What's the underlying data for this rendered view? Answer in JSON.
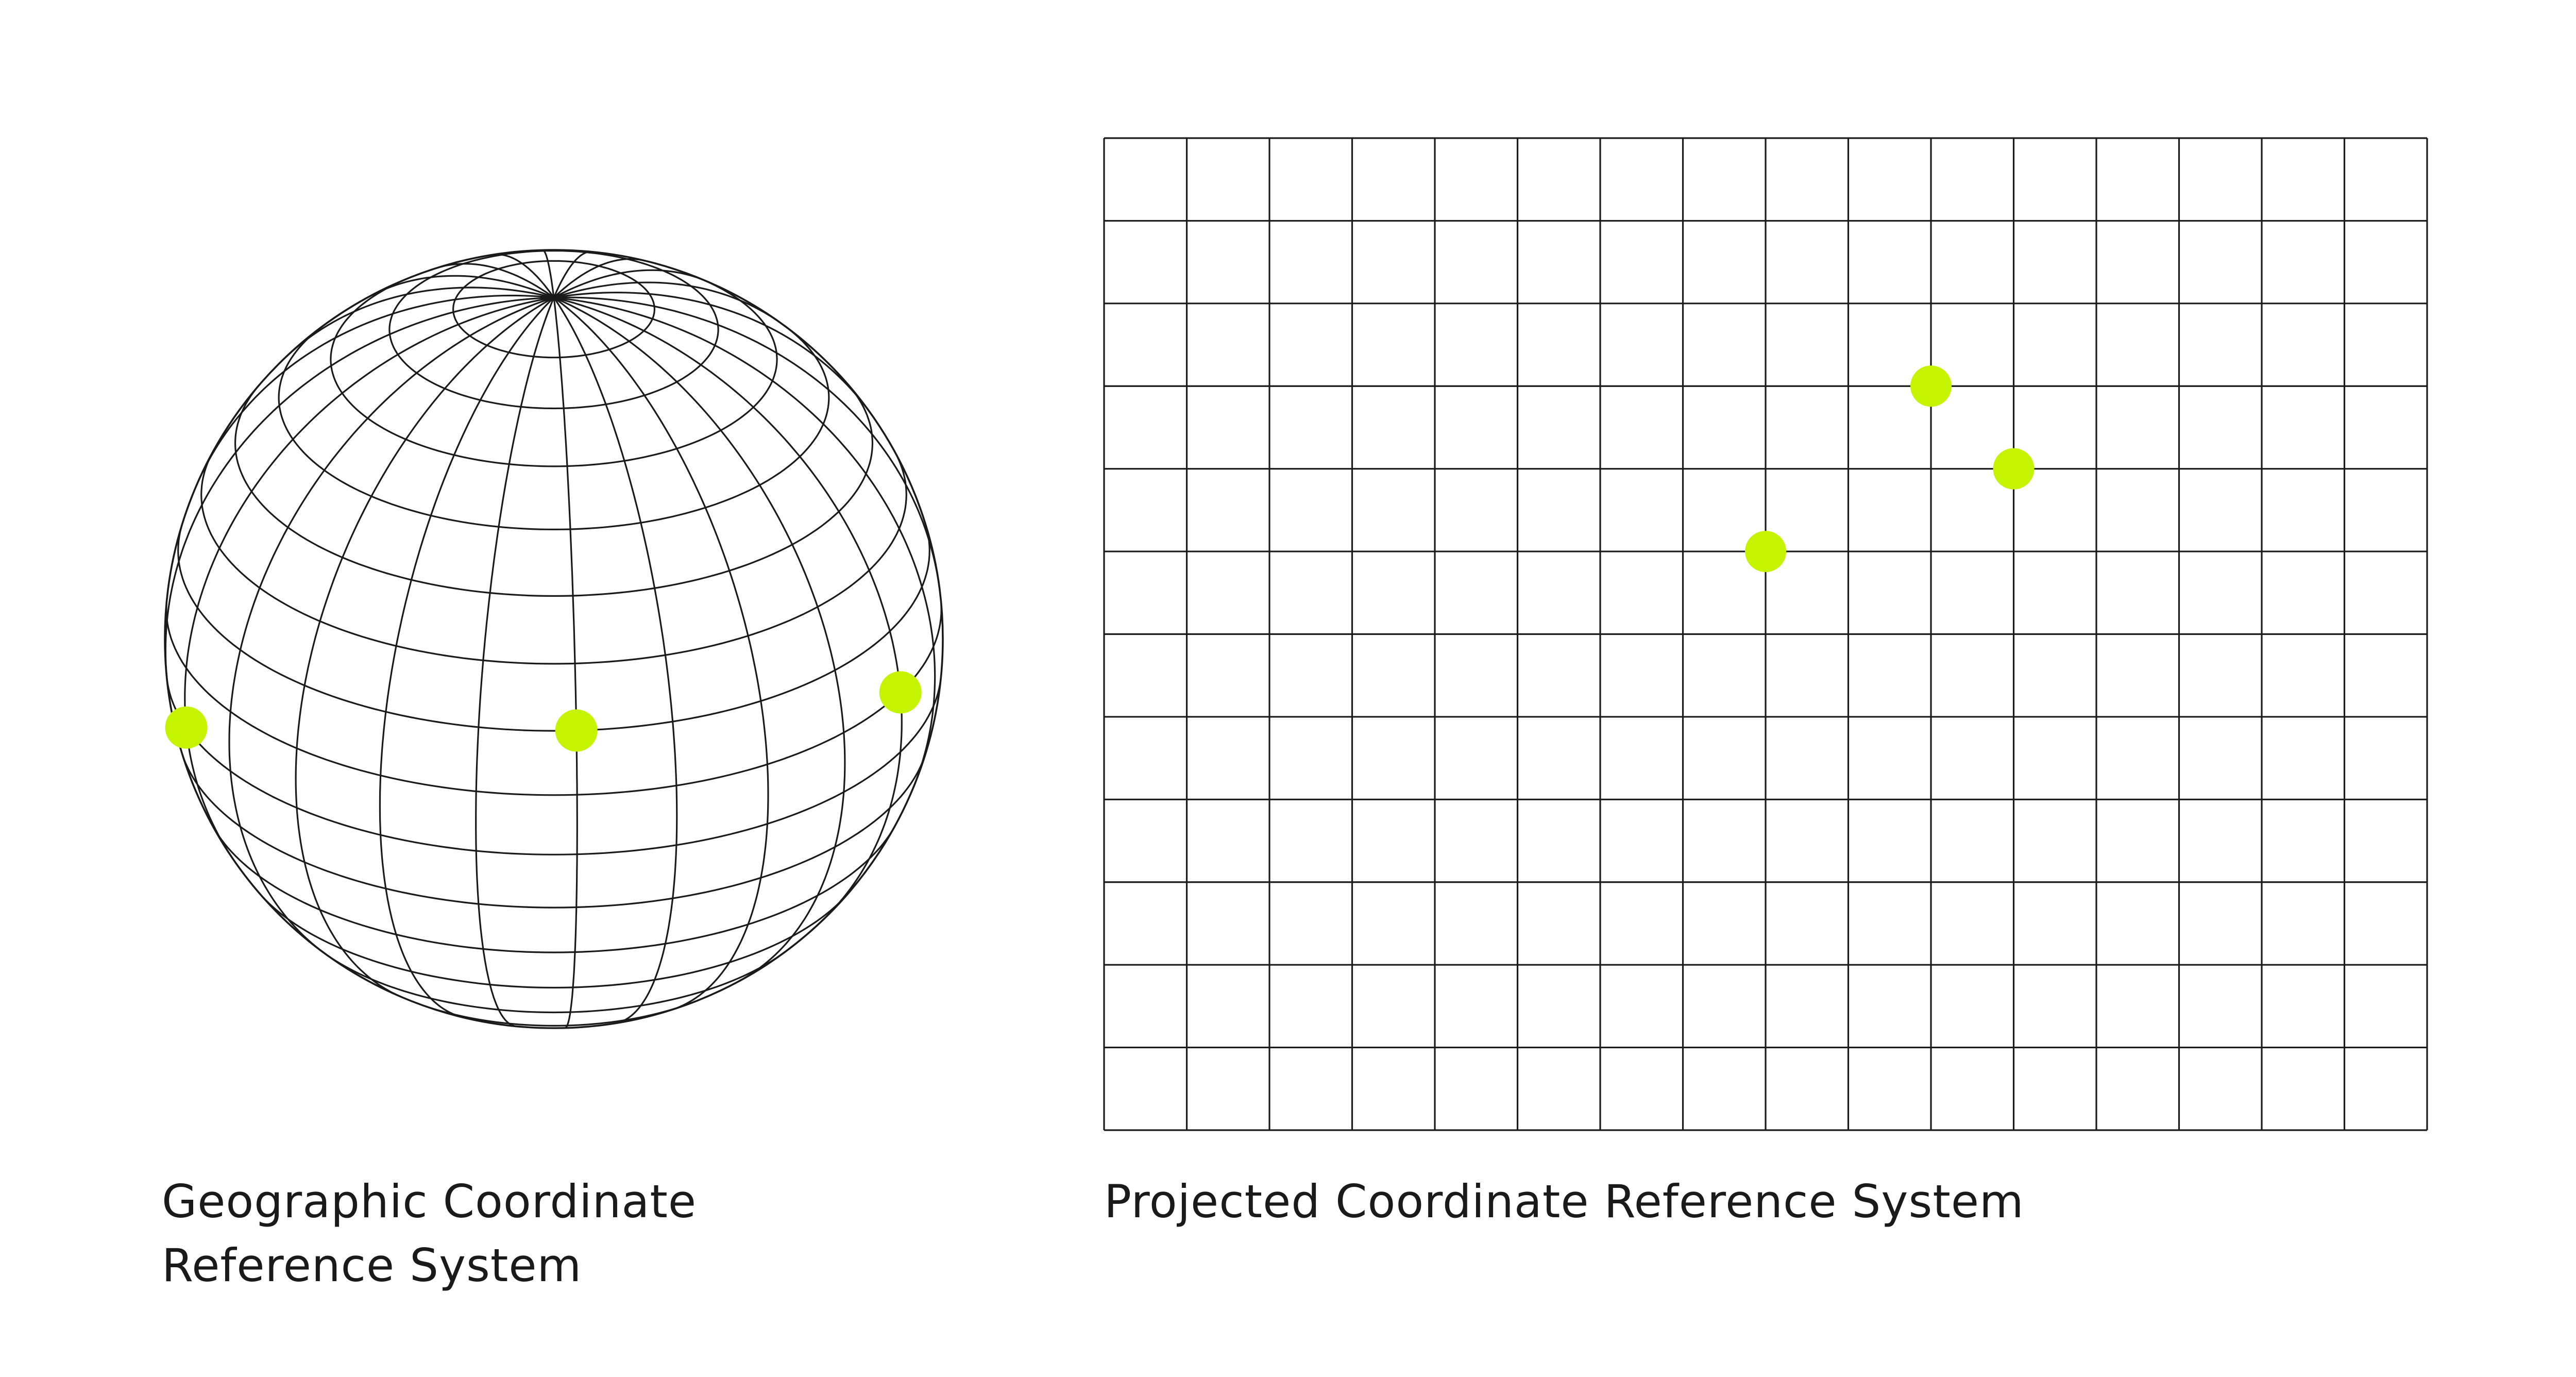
{
  "figure": {
    "panels": [
      {
        "kind": "globe",
        "caption_lines": [
          "Geographic Coordinate",
          "Reference System"
        ],
        "points": 3
      },
      {
        "kind": "grid",
        "caption_lines": [
          "Projected Coordinate Reference System"
        ],
        "columns": 16,
        "rows": 12,
        "points": 3
      }
    ],
    "colors": {
      "line": "#1a1a1a",
      "point": "#c4f400",
      "background": "#ffffff"
    }
  }
}
